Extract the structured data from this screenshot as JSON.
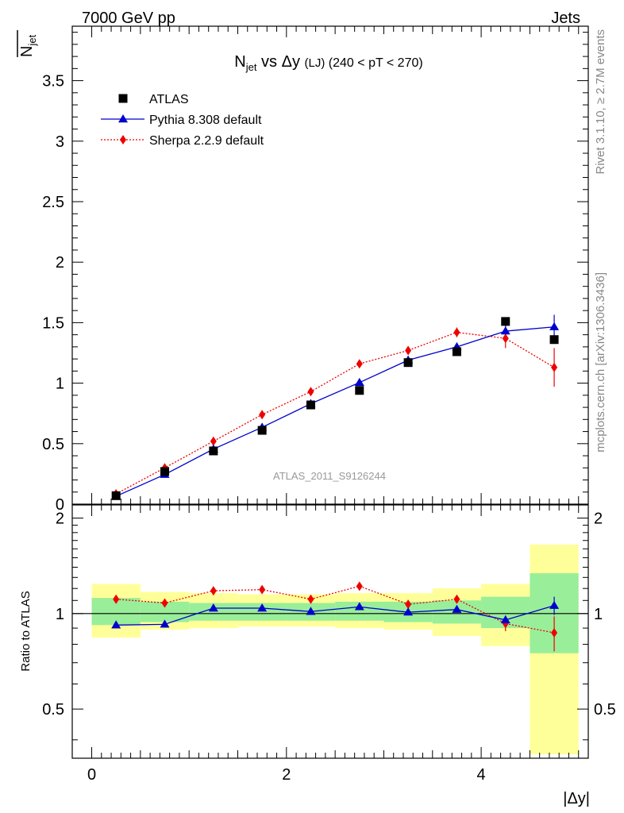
{
  "header": {
    "left": "7000 GeV pp",
    "right": "Jets"
  },
  "side_labels": {
    "rivet": "Rivet 3.1.10, ≥ 2.7M events",
    "mcplots": "mcplots.cern.ch [arXiv:1306.3436]"
  },
  "chart_data": [
    {
      "type": "scatter",
      "title_main": "N",
      "title_sub": "jet",
      "title_mid": " vs Δy ",
      "title_lj": "(LJ)",
      "title_range": " (240 < pT < 270)",
      "ylabel_main": "N",
      "ylabel_sub": "jet",
      "watermark": "ATLAS_2011_S9126244",
      "xlim": [
        -0.2,
        5.1
      ],
      "ylim": [
        0,
        3.95
      ],
      "y_ticks": [
        "0",
        "0.5",
        "1",
        "1.5",
        "2",
        "2.5",
        "3",
        "3.5"
      ],
      "y_tick_values": [
        0,
        0.5,
        1,
        1.5,
        2,
        2.5,
        3,
        3.5
      ],
      "legend_position": "top-left",
      "series": [
        {
          "name": "ATLAS",
          "marker": "square",
          "color": "#000000",
          "x": [
            0.25,
            0.75,
            1.25,
            1.75,
            2.25,
            2.75,
            3.25,
            3.75,
            4.25,
            4.75
          ],
          "y": [
            0.07,
            0.27,
            0.44,
            0.61,
            0.82,
            0.94,
            1.17,
            1.26,
            1.51,
            1.36
          ]
        },
        {
          "name": "Pythia 8.308 default",
          "marker": "triangle",
          "color": "#0000cc",
          "line": "solid",
          "x": [
            0.25,
            0.75,
            1.25,
            1.75,
            2.25,
            2.75,
            3.25,
            3.75,
            4.25,
            4.75
          ],
          "y": [
            0.065,
            0.245,
            0.455,
            0.635,
            0.83,
            1.005,
            1.19,
            1.3,
            1.43,
            1.465
          ],
          "err": [
            0.005,
            0.01,
            0.01,
            0.01,
            0.01,
            0.015,
            0.02,
            0.03,
            0.05,
            0.1
          ]
        },
        {
          "name": "Sherpa 2.2.9 default",
          "marker": "diamond",
          "color": "#ee0000",
          "line": "dotted",
          "x": [
            0.25,
            0.75,
            1.25,
            1.75,
            2.25,
            2.75,
            3.25,
            3.75,
            4.25,
            4.75
          ],
          "y": [
            0.085,
            0.3,
            0.52,
            0.74,
            0.93,
            1.16,
            1.27,
            1.42,
            1.37,
            1.13
          ],
          "err": [
            0.005,
            0.01,
            0.01,
            0.01,
            0.01,
            0.015,
            0.02,
            0.04,
            0.08,
            0.16
          ]
        }
      ]
    },
    {
      "type": "scatter",
      "ylabel": "Ratio to ATLAS",
      "xlabel": "|Δy|",
      "xlim": [
        -0.2,
        5.1
      ],
      "ylim": [
        0.35,
        2.2
      ],
      "y_scale": "log",
      "y_ticks": [
        "0.5",
        "1",
        "2"
      ],
      "y_tick_values": [
        0.5,
        1,
        2
      ],
      "x_ticks": [
        "0",
        "2",
        "4"
      ],
      "x_tick_values": [
        0,
        2,
        4
      ],
      "reference_line": 1,
      "bands": {
        "x_edges": [
          0,
          0.5,
          1,
          1.5,
          2,
          2.5,
          3,
          3.5,
          4,
          4.5,
          5
        ],
        "yellow": [
          [
            0.84,
            1.24
          ],
          [
            0.89,
            1.17
          ],
          [
            0.9,
            1.16
          ],
          [
            0.91,
            1.15
          ],
          [
            0.91,
            1.15
          ],
          [
            0.9,
            1.16
          ],
          [
            0.89,
            1.16
          ],
          [
            0.85,
            1.2
          ],
          [
            0.79,
            1.24
          ],
          [
            0.36,
            1.65
          ]
        ],
        "green": [
          [
            0.92,
            1.12
          ],
          [
            0.94,
            1.09
          ],
          [
            0.95,
            1.08
          ],
          [
            0.95,
            1.08
          ],
          [
            0.95,
            1.08
          ],
          [
            0.95,
            1.09
          ],
          [
            0.94,
            1.09
          ],
          [
            0.93,
            1.1
          ],
          [
            0.9,
            1.13
          ],
          [
            0.75,
            1.34
          ]
        ]
      },
      "series": [
        {
          "name": "Pythia 8.308 default",
          "color": "#0000cc",
          "x": [
            0.25,
            0.75,
            1.25,
            1.75,
            2.25,
            2.75,
            3.25,
            3.75,
            4.25,
            4.75
          ],
          "y": [
            0.92,
            0.925,
            1.04,
            1.04,
            1.015,
            1.05,
            1.01,
            1.03,
            0.955,
            1.06
          ],
          "err": [
            0.005,
            0.005,
            0.005,
            0.005,
            0.005,
            0.005,
            0.005,
            0.01,
            0.03,
            0.07
          ]
        },
        {
          "name": "Sherpa 2.2.9 default",
          "color": "#ee0000",
          "x": [
            0.25,
            0.75,
            1.25,
            1.75,
            2.25,
            2.75,
            3.25,
            3.75,
            4.25,
            4.75
          ],
          "y": [
            1.11,
            1.08,
            1.18,
            1.19,
            1.11,
            1.22,
            1.07,
            1.11,
            0.93,
            0.87
          ],
          "err": [
            0.005,
            0.005,
            0.005,
            0.005,
            0.005,
            0.005,
            0.005,
            0.01,
            0.05,
            0.11
          ]
        }
      ]
    }
  ]
}
